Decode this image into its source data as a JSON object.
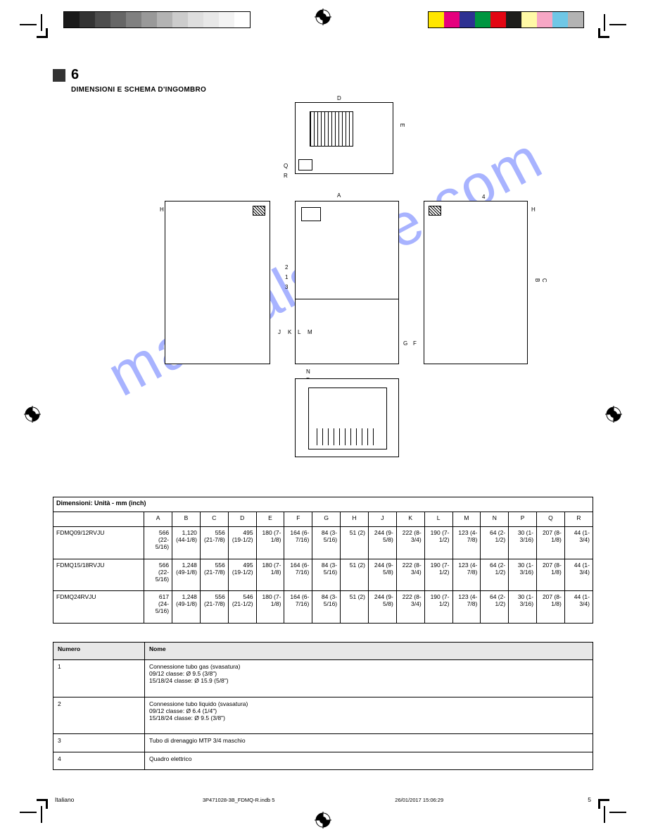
{
  "section_number": "6",
  "section_title": "DIMENSIONI E SCHEMA D'INGOMBRO",
  "grayscale": [
    "#1a1a1a",
    "#333333",
    "#4d4d4d",
    "#666666",
    "#808080",
    "#999999",
    "#b3b3b3",
    "#cccccc",
    "#dedede",
    "#e8e8e8",
    "#f3f3f3",
    "#ffffff"
  ],
  "colors": [
    "#ffe600",
    "#e6007e",
    "#2e3192",
    "#009640",
    "#e30613",
    "#1d1d1b",
    "#fff9a6",
    "#f7a7c5",
    "#6fc7e6",
    "#b3b3b3"
  ],
  "watermark": "manualshive.com",
  "diagram_labels": {
    "D": "D",
    "E": "E",
    "Q": "Q",
    "R": "R",
    "A": "A",
    "H": "H",
    "four": "4",
    "two": "2",
    "one": "1",
    "three": "3",
    "J": "J",
    "K": "K",
    "L": "L",
    "M": "M",
    "N": "N",
    "P": "P",
    "G": "G",
    "F": "F",
    "B": "B",
    "C": "C"
  },
  "table1": {
    "title": "Dimensioni: Unità - mm (inch)",
    "cols": [
      "A",
      "B",
      "C",
      "D",
      "E",
      "F",
      "G",
      "H",
      "J",
      "K",
      "L",
      "M",
      "N",
      "P",
      "Q",
      "R"
    ],
    "rows": [
      {
        "label": "FDMQ09/12RVJU",
        "vals": [
          "566 (22-5/16)",
          "1,120 (44-1/8)",
          "556 (21-7/8)",
          "495 (19-1/2)",
          "180 (7-1/8)",
          "164 (6-7/16)",
          "84 (3-5/16)",
          "51 (2)",
          "244 (9-5/8)",
          "222 (8-3/4)",
          "190 (7-1/2)",
          "123 (4-7/8)",
          "64 (2-1/2)",
          "30 (1-3/16)",
          "207 (8-1/8)",
          "44 (1-3/4)"
        ]
      },
      {
        "label": "FDMQ15/18RVJU",
        "vals": [
          "566 (22-5/16)",
          "1,248 (49-1/8)",
          "556 (21-7/8)",
          "495 (19-1/2)",
          "180 (7-1/8)",
          "164 (6-7/16)",
          "84 (3-5/16)",
          "51 (2)",
          "244 (9-5/8)",
          "222 (8-3/4)",
          "190 (7-1/2)",
          "123 (4-7/8)",
          "64 (2-1/2)",
          "30 (1-3/16)",
          "207 (8-1/8)",
          "44 (1-3/4)"
        ]
      },
      {
        "label": "FDMQ24RVJU",
        "vals": [
          "617 (24-5/16)",
          "1,248 (49-1/8)",
          "556 (21-7/8)",
          "546 (21-1/2)",
          "180 (7-1/8)",
          "164 (6-7/16)",
          "84 (3-5/16)",
          "51 (2)",
          "244 (9-5/8)",
          "222 (8-3/4)",
          "190 (7-1/2)",
          "123 (4-7/8)",
          "64 (2-1/2)",
          "30 (1-3/16)",
          "207 (8-1/8)",
          "44 (1-3/4)"
        ]
      }
    ]
  },
  "table2": {
    "head": [
      "Numero",
      "Nome"
    ],
    "rows": [
      {
        "n": "1",
        "v": "Connessione tubo gas (svasatura)\n09/12 classe: Ø 9.5 (3/8\")\n15/18/24 classe: Ø 15.9 (5/8\")"
      },
      {
        "n": "2",
        "v": "Connessione tubo liquido (svasatura)\n09/12 classe: Ø 6.4 (1/4\")\n15/18/24 classe: Ø 9.5 (3/8\")"
      },
      {
        "n": "3",
        "v": "Tubo di drenaggio MTP 3/4 maschio"
      },
      {
        "n": "4",
        "v": "Quadro elettrico"
      }
    ]
  },
  "footer": {
    "left": "Italiano",
    "page": "5",
    "doc": "3P471028-3B_FDMQ-R.indb   5",
    "date": "26/01/2017   15:06:29"
  }
}
